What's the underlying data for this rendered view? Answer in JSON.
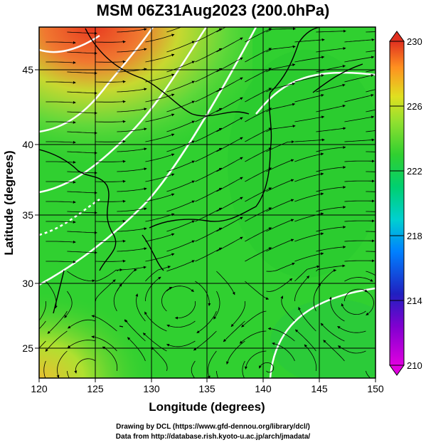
{
  "title": "MSM 06Z31Aug2023 (200.0hPa)",
  "x_axis": {
    "label": "Longitude (degrees)",
    "range": [
      120,
      150
    ],
    "ticks": [
      120,
      125,
      130,
      135,
      140,
      145,
      150
    ]
  },
  "y_axis": {
    "label": "Latitude  (degrees)",
    "range": [
      22.5,
      47.6
    ],
    "ticks": [
      25,
      30,
      35,
      40,
      45
    ]
  },
  "colorbar": {
    "range": [
      210,
      230
    ],
    "ticks": [
      210,
      214,
      218,
      222,
      226,
      230
    ],
    "colors": [
      "#e000e0",
      "#2020c0",
      "#00a0ff",
      "#00e0a0",
      "#20d020",
      "#60e020",
      "#e0e020",
      "#ff9020",
      "#e03020"
    ]
  },
  "credits": {
    "line1": "Drawing by DCL (https://www.gfd-dennou.org/library/dcl/)",
    "line2": "Data from http://database.rish.kyoto-u.ac.jp/arch/jmadata/"
  },
  "colors": {
    "background": "#ffffff",
    "field_main": "#30d030",
    "warm_corner": "#e84020",
    "contour": "#ffffff",
    "coast": "#000000",
    "grid": "#000000"
  }
}
